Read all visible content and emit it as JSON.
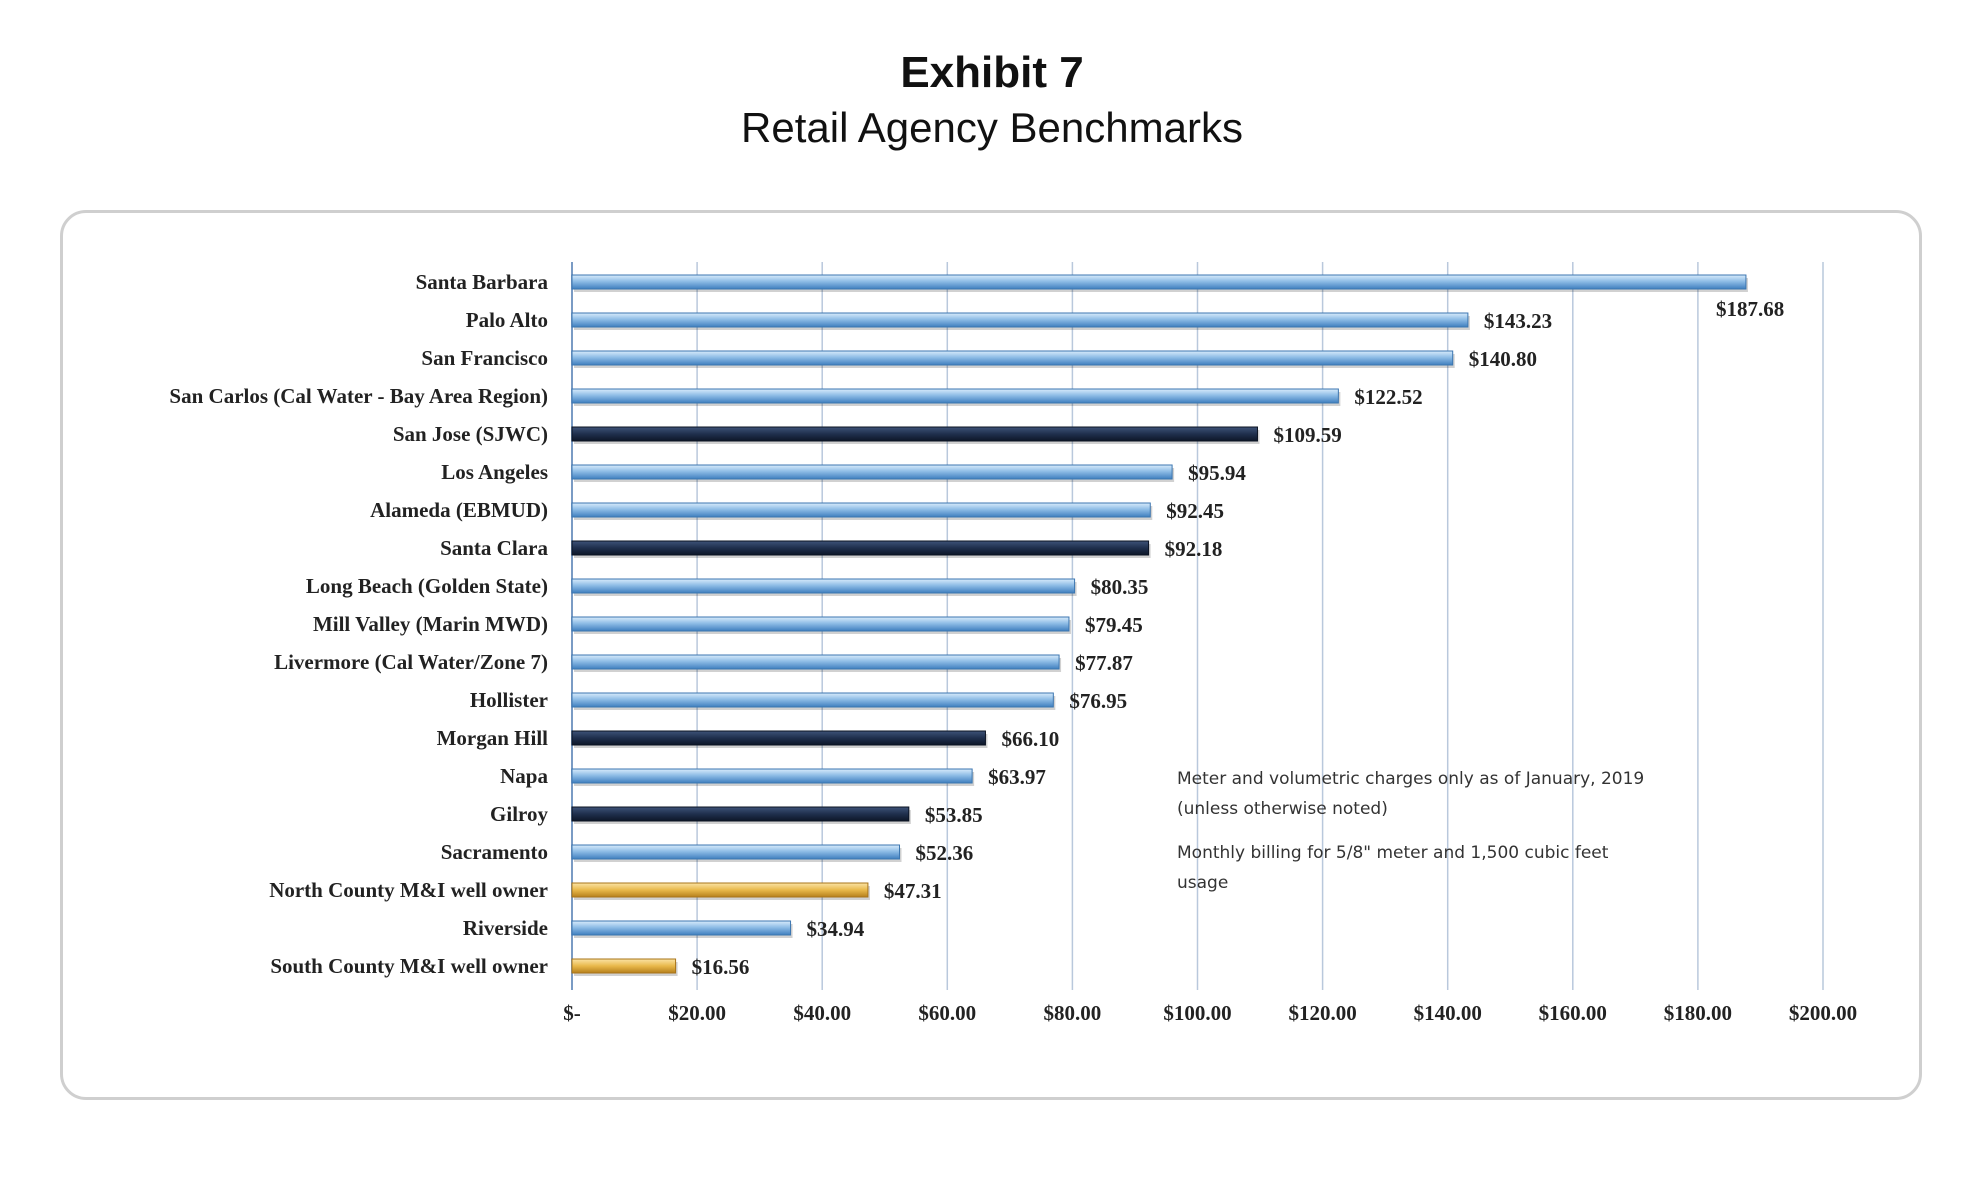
{
  "header": {
    "title": "Exhibit 7",
    "subtitle": "Retail Agency Benchmarks"
  },
  "chart_data": {
    "type": "bar",
    "orientation": "horizontal",
    "categories": [
      "Santa Barbara",
      "Palo Alto",
      "San Francisco",
      "San Carlos (Cal Water - Bay Area Region)",
      "San Jose (SJWC)",
      "Los Angeles",
      "Alameda (EBMUD)",
      "Santa Clara",
      "Long Beach (Golden State)",
      "Mill Valley (Marin MWD)",
      "Livermore (Cal Water/Zone 7)",
      "Hollister",
      "Morgan Hill",
      "Napa",
      "Gilroy",
      "Sacramento",
      "North County M&I well owner",
      "Riverside",
      "South County M&I well owner"
    ],
    "values": [
      187.68,
      143.23,
      140.8,
      122.52,
      109.59,
      95.94,
      92.45,
      92.18,
      80.35,
      79.45,
      77.87,
      76.95,
      66.1,
      63.97,
      53.85,
      52.36,
      47.31,
      34.94,
      16.56
    ],
    "value_labels": [
      "$187.68",
      "$143.23",
      "$140.80",
      "$122.52",
      "$109.59",
      "$95.94",
      "$92.45",
      "$92.18",
      "$80.35",
      "$79.45",
      "$77.87",
      "$76.95",
      "$66.10",
      "$63.97",
      "$53.85",
      "$52.36",
      "$47.31",
      "$34.94",
      "$16.56"
    ],
    "bar_groups": [
      "light",
      "light",
      "light",
      "light",
      "dark",
      "light",
      "light",
      "dark",
      "light",
      "light",
      "light",
      "light",
      "dark",
      "light",
      "dark",
      "light",
      "gold",
      "light",
      "gold"
    ],
    "colors": {
      "light": "#8fbde6",
      "dark": "#1f2f4d",
      "gold": "#e8b84a"
    },
    "xlim": [
      0,
      200
    ],
    "xticks": [
      0,
      20,
      40,
      60,
      80,
      100,
      120,
      140,
      160,
      180,
      200
    ],
    "xtick_labels": [
      "$-",
      "$20.00",
      "$40.00",
      "$60.00",
      "$80.00",
      "$100.00",
      "$120.00",
      "$140.00",
      "$160.00",
      "$180.00",
      "$200.00"
    ],
    "grid": "vertical",
    "xlabel": "",
    "ylabel": "",
    "notes": [
      "Meter and volumetric charges only as of January, 2019",
      "(unless otherwise noted)",
      "Monthly billing for 5/8\" meter and 1,500 cubic feet",
      "usage"
    ]
  }
}
